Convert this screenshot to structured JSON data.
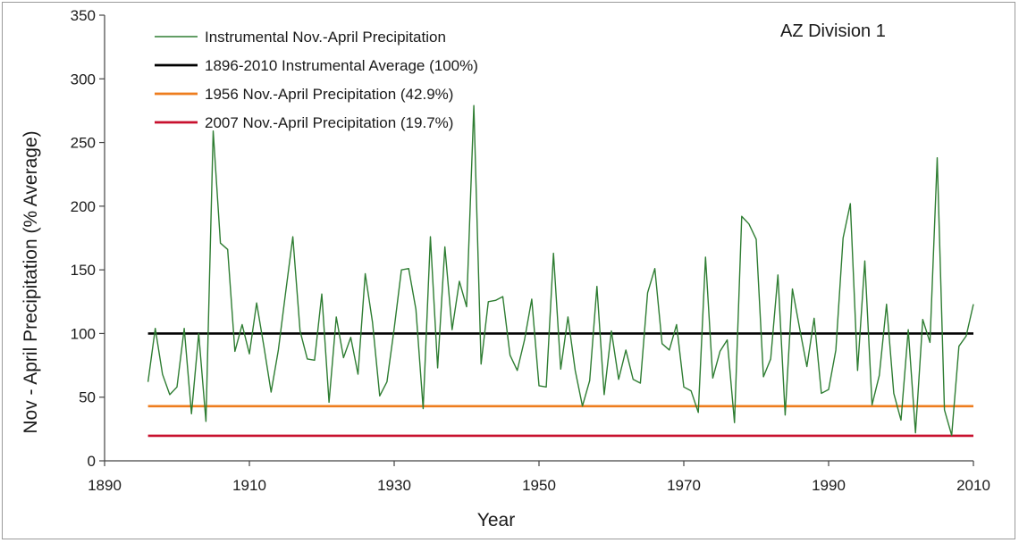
{
  "chart_data": {
    "type": "line",
    "annotation": "AZ Division 1",
    "xlabel": "Year",
    "ylabel": "Nov - April Precipitation (% Average)",
    "xlim": [
      1890,
      2010
    ],
    "ylim": [
      0,
      350
    ],
    "x_ticks": [
      "1890",
      "1910",
      "1930",
      "1950",
      "1970",
      "1990",
      "2010"
    ],
    "y_ticks": [
      "0",
      "50",
      "100",
      "150",
      "200",
      "250",
      "300",
      "350"
    ],
    "legend_position": "top-left",
    "series": [
      {
        "name": "Instrumental Nov.-April Precipitation",
        "color": "#2e7d32",
        "x": [
          1896,
          1897,
          1898,
          1899,
          1900,
          1901,
          1902,
          1903,
          1904,
          1905,
          1906,
          1907,
          1908,
          1909,
          1910,
          1911,
          1912,
          1913,
          1914,
          1915,
          1916,
          1917,
          1918,
          1919,
          1920,
          1921,
          1922,
          1923,
          1924,
          1925,
          1926,
          1927,
          1928,
          1929,
          1930,
          1931,
          1932,
          1933,
          1934,
          1935,
          1936,
          1937,
          1938,
          1939,
          1940,
          1941,
          1942,
          1943,
          1944,
          1945,
          1946,
          1947,
          1948,
          1949,
          1950,
          1951,
          1952,
          1953,
          1954,
          1955,
          1956,
          1957,
          1958,
          1959,
          1960,
          1961,
          1962,
          1963,
          1964,
          1965,
          1966,
          1967,
          1968,
          1969,
          1970,
          1971,
          1972,
          1973,
          1974,
          1975,
          1976,
          1977,
          1978,
          1979,
          1980,
          1981,
          1982,
          1983,
          1984,
          1985,
          1986,
          1987,
          1988,
          1989,
          1990,
          1991,
          1992,
          1993,
          1994,
          1995,
          1996,
          1997,
          1998,
          1999,
          2000,
          2001,
          2002,
          2003,
          2004,
          2005,
          2006,
          2007,
          2008,
          2009,
          2010
        ],
        "values": [
          62,
          104,
          68,
          52,
          58,
          104,
          37,
          100,
          31,
          259,
          171,
          166,
          86,
          107,
          84,
          124,
          90,
          54,
          87,
          132,
          176,
          102,
          80,
          79,
          131,
          46,
          113,
          81,
          97,
          68,
          147,
          109,
          51,
          62,
          104,
          150,
          151,
          119,
          41,
          176,
          73,
          168,
          103,
          141,
          121,
          279,
          76,
          125,
          126,
          129,
          83,
          71,
          95,
          127,
          59,
          58,
          163,
          72,
          113,
          71,
          43,
          63,
          137,
          52,
          102,
          64,
          87,
          64,
          61,
          132,
          151,
          92,
          87,
          107,
          58,
          55,
          38,
          160,
          65,
          86,
          95,
          30,
          192,
          186,
          174,
          66,
          80,
          146,
          36,
          135,
          104,
          74,
          112,
          53,
          56,
          87,
          175,
          202,
          71,
          157,
          44,
          67,
          123,
          53,
          32,
          103,
          22,
          111,
          93,
          238,
          40,
          20,
          90,
          98,
          123
        ]
      },
      {
        "name": "1896-2010 Instrumental Average (100%)",
        "color": "#000000",
        "x": [
          1896,
          2010
        ],
        "values": [
          100,
          100
        ]
      },
      {
        "name": "1956 Nov.-April Precipitation (42.9%)",
        "color": "#ee7d1e",
        "x": [
          1896,
          2010
        ],
        "values": [
          42.9,
          42.9
        ]
      },
      {
        "name": "2007 Nov.-April Precipitation (19.7%)",
        "color": "#c8102e",
        "x": [
          1896,
          2010
        ],
        "values": [
          19.7,
          19.7
        ]
      }
    ]
  }
}
